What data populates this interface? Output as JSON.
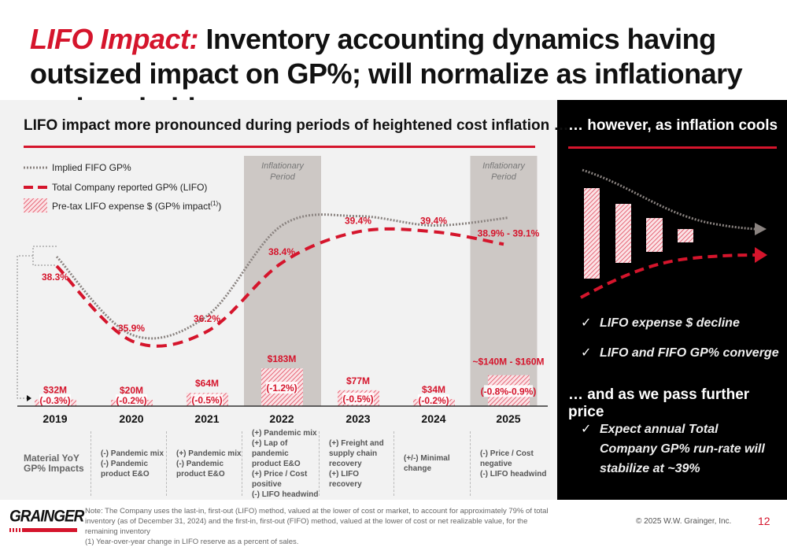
{
  "title": {
    "accent": "LIFO Impact:",
    "rest": " Inventory accounting dynamics having outsized impact on GP%; will normalize as inflationary cycle subsides"
  },
  "left": {
    "subtitle": "LIFO impact more pronounced during periods of heightened cost inflation …"
  },
  "colors": {
    "red": "#d5152c",
    "fifo_gray": "#8a8380",
    "inflation_band": "#cdc8c5",
    "panel": "#000000"
  },
  "chart_data": {
    "type": "bar+line",
    "categories": [
      "2019",
      "2020",
      "2021",
      "2022",
      "2023",
      "2024",
      "2025"
    ],
    "legend": [
      "Implied FIFO GP%",
      "Total Company reported GP% (LIFO)",
      "Pre-tax LIFO expense $ (GP% impact",
      "(1)",
      ")"
    ],
    "legend_placement": "top-left",
    "inflation_bands": [
      {
        "category": "2022",
        "label": [
          "Inflationary",
          "Period"
        ]
      },
      {
        "category": "2025",
        "label": [
          "Inflationary",
          "Period"
        ]
      }
    ],
    "series": [
      {
        "name": "Total Company reported GP% (LIFO)",
        "values": [
          38.3,
          35.9,
          36.2,
          38.4,
          39.4,
          39.4,
          39.0
        ],
        "labels": [
          "38.3%",
          "35.9%",
          "36.2%",
          "38.4%",
          "39.4%",
          "39.4%",
          "38.9% - 39.1%"
        ]
      },
      {
        "name": "Implied FIFO GP%",
        "values": [
          38.6,
          36.1,
          36.7,
          39.6,
          39.9,
          39.6,
          39.85
        ]
      },
      {
        "name": "Pre-tax LIFO expense $ (GP% impact)",
        "values_musd": [
          32,
          20,
          64,
          183,
          77,
          34,
          150
        ],
        "labels": [
          "$32M",
          "$20M",
          "$64M",
          "$183M",
          "$77M",
          "$34M",
          "~$140M - $160M"
        ],
        "impact_labels": [
          "(-0.3%)",
          "(-0.2%)",
          "(-0.5%)",
          "(-1.2%)",
          "(-0.5%)",
          "(-0.2%)",
          "(-0.8%-0.9%)"
        ]
      }
    ]
  },
  "table": {
    "row_label": [
      "Material YoY",
      "GP% Impacts"
    ],
    "cells": [
      [
        "(-) Pandemic mix",
        "(-) Pandemic",
        "product E&O"
      ],
      [
        "(+) Pandemic mix",
        "(-)  Pandemic",
        "product E&O"
      ],
      [
        "(+) Pandemic mix",
        "(+) Lap of pandemic",
        "product E&O",
        "(+) Price / Cost",
        "positive",
        "(-) LIFO headwind"
      ],
      [
        "(+) Freight and",
        "supply chain",
        "recovery",
        "(+) LIFO recovery"
      ],
      [
        "(+/-) Minimal change"
      ],
      [
        "(-) Price / Cost",
        "negative",
        "(-) LIFO headwind"
      ]
    ]
  },
  "right": {
    "heading1": "… however, as inflation cools",
    "checks1": [
      "LIFO expense $ decline",
      "LIFO and FIFO GP% converge"
    ],
    "heading2": "… and as we pass further price",
    "checks2": [
      "Expect annual Total",
      "Company GP% run-rate will",
      "stabilize at ~39%"
    ],
    "check_glyph": "✓"
  },
  "footer": {
    "logo": "GRAINGER",
    "note1": "Note: The Company uses the last-in, first-out (LIFO) method, valued at the lower of cost or market, to account for approximately 79% of total inventory (as of December 31, 2024) and the first-in, first-out (FIFO) method, valued at the lower of cost or net realizable value, for the remaining inventory",
    "note2": "(1)   Year-over-year change in LIFO reserve as a percent of sales.",
    "copyright": "© 2025 W.W. Grainger, Inc.",
    "page": "12"
  }
}
